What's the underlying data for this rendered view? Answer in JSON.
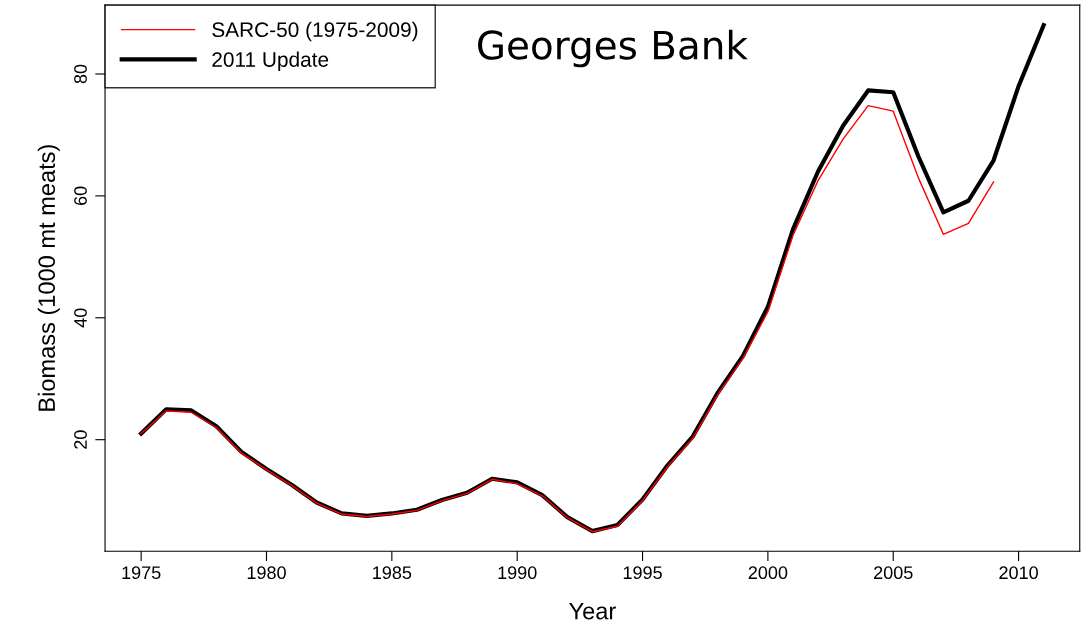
{
  "chart_data": {
    "type": "line",
    "title": "Georges Bank",
    "xlabel": "Year",
    "ylabel": "Biomass (1000 mt meats)",
    "xlim": [
      1973.56,
      2012.44
    ],
    "ylim": [
      1.7,
      91.3
    ],
    "xticks": [
      1975,
      1980,
      1985,
      1990,
      1995,
      2000,
      2005,
      2010
    ],
    "yticks": [
      20,
      40,
      60,
      80
    ],
    "grid": false,
    "legend": "top left",
    "marker": "none",
    "line_style": "solid",
    "series": [
      {
        "name": "SARC-50 (1975-2009)",
        "color": "#ff0000",
        "x": [
          1975,
          1976,
          1977,
          1978,
          1979,
          1980,
          1981,
          1982,
          1983,
          1984,
          1985,
          1986,
          1987,
          1988,
          1989,
          1990,
          1991,
          1992,
          1993,
          1994,
          1995,
          1996,
          1997,
          1998,
          1999,
          2000,
          2001,
          2002,
          2003,
          2004,
          2005,
          2006,
          2007,
          2008,
          2009
        ],
        "values": [
          21,
          24.7,
          24.5,
          22,
          17.8,
          15.1,
          12.5,
          9.6,
          7.8,
          7.4,
          7.8,
          8.4,
          10,
          11.2,
          13.5,
          12.8,
          10.8,
          7.2,
          4.9,
          5.8,
          10,
          15.6,
          20.2,
          27.4,
          33.3,
          41,
          53.5,
          62.5,
          69.3,
          74.8,
          73.9,
          63,
          53.7,
          55.5,
          62.3
        ]
      },
      {
        "name": "2011 Update",
        "color": "#000000",
        "x": [
          1975,
          1976,
          1977,
          1978,
          1979,
          1980,
          1981,
          1982,
          1983,
          1984,
          1985,
          1986,
          1987,
          1988,
          1989,
          1990,
          1991,
          1992,
          1993,
          1994,
          1995,
          1996,
          1997,
          1998,
          1999,
          2000,
          2001,
          2002,
          2003,
          2004,
          2005,
          2006,
          2007,
          2008,
          2009,
          2010,
          2011
        ],
        "values": [
          21,
          25,
          24.8,
          22.2,
          18,
          15.2,
          12.6,
          9.7,
          7.9,
          7.5,
          7.9,
          8.5,
          10.1,
          11.3,
          13.6,
          13,
          10.9,
          7.3,
          5,
          6,
          10.2,
          15.8,
          20.5,
          27.7,
          33.7,
          41.8,
          54.5,
          64,
          71.5,
          77.3,
          77,
          66.5,
          57.3,
          59.2,
          65.8,
          78,
          88
        ]
      }
    ]
  }
}
